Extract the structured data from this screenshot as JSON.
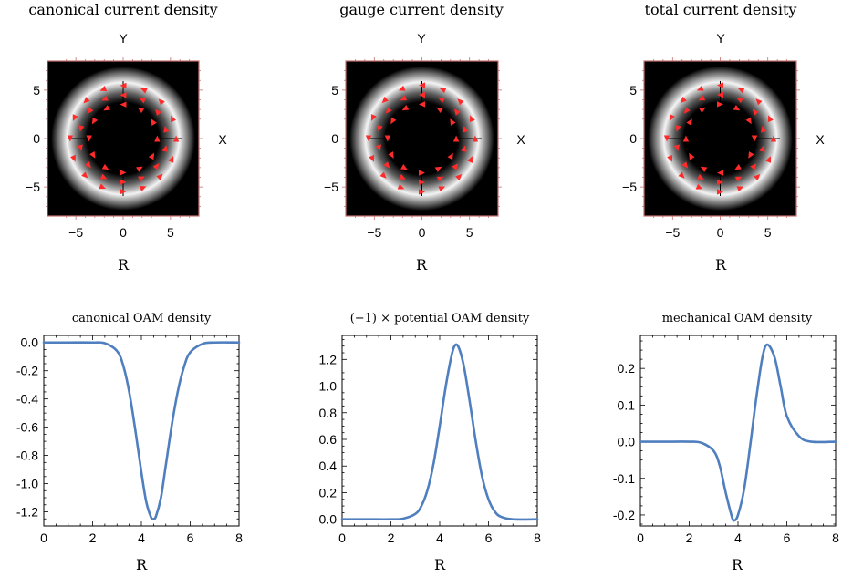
{
  "colors": {
    "curve": "#4f7fbf",
    "arrow": "#ff2a2a",
    "frame": "#000000",
    "plot_bg": "#000000",
    "tick": "#c87070"
  },
  "chart_data": [
    {
      "type": "heatmap",
      "title": "canonical current density",
      "xlabel": "R",
      "axis_x_name": "X",
      "axis_y_name": "Y",
      "xlim": [
        -8,
        8
      ],
      "ylim": [
        -8,
        8
      ],
      "xticks": [
        -5,
        0,
        5
      ],
      "yticks": [
        -5,
        0,
        5
      ],
      "intensity": {
        "ring_center_radius": 4.6,
        "ring_width": 1.2
      },
      "vector_field": {
        "arrow_radii": [
          3.6,
          4.6,
          5.6
        ],
        "arrows_per_ring": [
          12,
          14,
          16
        ],
        "direction": "counterclockwise",
        "color": "red"
      }
    },
    {
      "type": "heatmap",
      "title": "gauge current density",
      "xlabel": "R",
      "axis_x_name": "X",
      "axis_y_name": "Y",
      "xlim": [
        -8,
        8
      ],
      "ylim": [
        -8,
        8
      ],
      "xticks": [
        -5,
        0,
        5
      ],
      "yticks": [
        -5,
        0,
        5
      ],
      "intensity": {
        "ring_center_radius": 4.6,
        "ring_width": 1.2
      },
      "vector_field": {
        "arrow_radii": [
          3.6,
          4.6,
          5.6
        ],
        "arrows_per_ring": [
          12,
          14,
          16
        ],
        "direction": "counterclockwise",
        "color": "red"
      }
    },
    {
      "type": "heatmap",
      "title": "total current density",
      "xlabel": "R",
      "axis_x_name": "X",
      "axis_y_name": "Y",
      "xlim": [
        -8,
        8
      ],
      "ylim": [
        -8,
        8
      ],
      "xticks": [
        -5,
        0,
        5
      ],
      "yticks": [
        -5,
        0,
        5
      ],
      "intensity": {
        "ring_center_radius": 4.6,
        "ring_width": 1.2
      },
      "vector_field": {
        "arrow_radii": [
          3.6,
          4.6,
          5.6
        ],
        "arrows_per_ring": [
          12,
          14,
          16
        ],
        "direction": "mixed",
        "color": "red"
      }
    },
    {
      "type": "line",
      "title": "canonical OAM density",
      "xlabel": "R",
      "xlim": [
        0,
        8
      ],
      "ylim": [
        -1.3,
        0.05
      ],
      "xticks": [
        0,
        2,
        4,
        6,
        8
      ],
      "yticks": [
        0.0,
        -0.2,
        -0.4,
        -0.6,
        -0.8,
        -1.0,
        -1.2
      ],
      "ytick_labels": [
        "0.0",
        "-0.2",
        "-0.4",
        "-0.6",
        "-0.8",
        "-1.0",
        "-1.2"
      ],
      "series": [
        {
          "x": [
            0,
            1,
            2,
            2.5,
            3,
            3.25,
            3.5,
            3.75,
            4,
            4.2,
            4.4,
            4.5,
            4.6,
            4.8,
            5,
            5.25,
            5.5,
            5.75,
            6,
            6.5,
            7,
            8
          ],
          "y": [
            0,
            0,
            0,
            -0.005,
            -0.06,
            -0.16,
            -0.35,
            -0.62,
            -0.92,
            -1.13,
            -1.24,
            -1.25,
            -1.23,
            -1.1,
            -0.87,
            -0.58,
            -0.34,
            -0.17,
            -0.07,
            -0.01,
            0,
            0
          ]
        }
      ]
    },
    {
      "type": "line",
      "title": "(−1) × potential OAM density",
      "xlabel": "R",
      "xlim": [
        0,
        8
      ],
      "ylim": [
        -0.05,
        1.38
      ],
      "xticks": [
        0,
        2,
        4,
        6,
        8
      ],
      "yticks": [
        0.0,
        0.2,
        0.4,
        0.6,
        0.8,
        1.0,
        1.2
      ],
      "ytick_labels": [
        "0.0",
        "0.2",
        "0.4",
        "0.6",
        "0.8",
        "1.0",
        "1.2"
      ],
      "series": [
        {
          "x": [
            0,
            1,
            2,
            2.5,
            3,
            3.25,
            3.5,
            3.75,
            4,
            4.25,
            4.5,
            4.65,
            4.8,
            5,
            5.25,
            5.5,
            5.75,
            6,
            6.25,
            6.5,
            7,
            8
          ],
          "y": [
            0,
            0,
            0,
            0.005,
            0.04,
            0.1,
            0.22,
            0.42,
            0.7,
            1.0,
            1.24,
            1.31,
            1.28,
            1.14,
            0.86,
            0.56,
            0.31,
            0.15,
            0.06,
            0.02,
            0,
            0
          ]
        }
      ]
    },
    {
      "type": "line",
      "title": "mechanical OAM density",
      "xlabel": "R",
      "xlim": [
        0,
        8
      ],
      "ylim": [
        -0.23,
        0.29
      ],
      "xticks": [
        0,
        2,
        4,
        6,
        8
      ],
      "yticks": [
        0.2,
        0.1,
        0.0,
        -0.1,
        -0.2
      ],
      "ytick_labels": [
        "0.2",
        "0.1",
        "0.0",
        "-0.1",
        "-0.2"
      ],
      "series": [
        {
          "x": [
            0,
            1,
            2,
            2.5,
            3,
            3.25,
            3.5,
            3.75,
            3.85,
            4,
            4.25,
            4.5,
            4.75,
            5,
            5.2,
            5.5,
            5.75,
            6,
            6.5,
            7,
            8
          ],
          "y": [
            0,
            0,
            0,
            -0.003,
            -0.025,
            -0.065,
            -0.14,
            -0.205,
            -0.215,
            -0.2,
            -0.13,
            -0.01,
            0.12,
            0.23,
            0.265,
            0.23,
            0.15,
            0.07,
            0.015,
            0,
            0
          ]
        }
      ]
    }
  ]
}
